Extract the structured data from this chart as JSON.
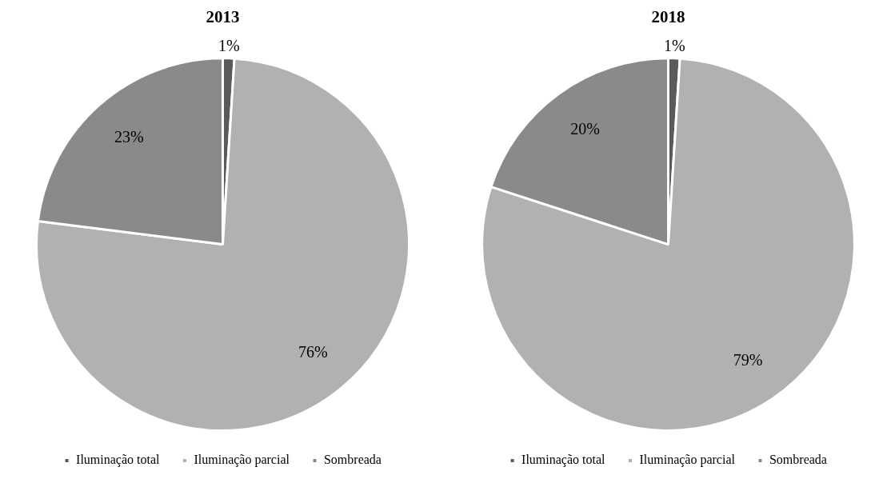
{
  "chart_data": [
    {
      "type": "pie",
      "title": "2013",
      "categories": [
        "Iluminação total",
        "Iluminação parcial",
        "Sombreada"
      ],
      "values": [
        1,
        76,
        23
      ],
      "colors": [
        "#5a5a5a",
        "#b1b1b1",
        "#8a8a8a"
      ],
      "value_labels": [
        "1%",
        "76%",
        "23%"
      ],
      "legend": "bottom"
    },
    {
      "type": "pie",
      "title": "2018",
      "categories": [
        "Iluminação total",
        "Iluminação parcial",
        "Sombreada"
      ],
      "values": [
        1,
        79,
        20
      ],
      "colors": [
        "#5a5a5a",
        "#b1b1b1",
        "#8a8a8a"
      ],
      "value_labels": [
        "1%",
        "79%",
        "20%"
      ],
      "legend": "bottom"
    }
  ]
}
